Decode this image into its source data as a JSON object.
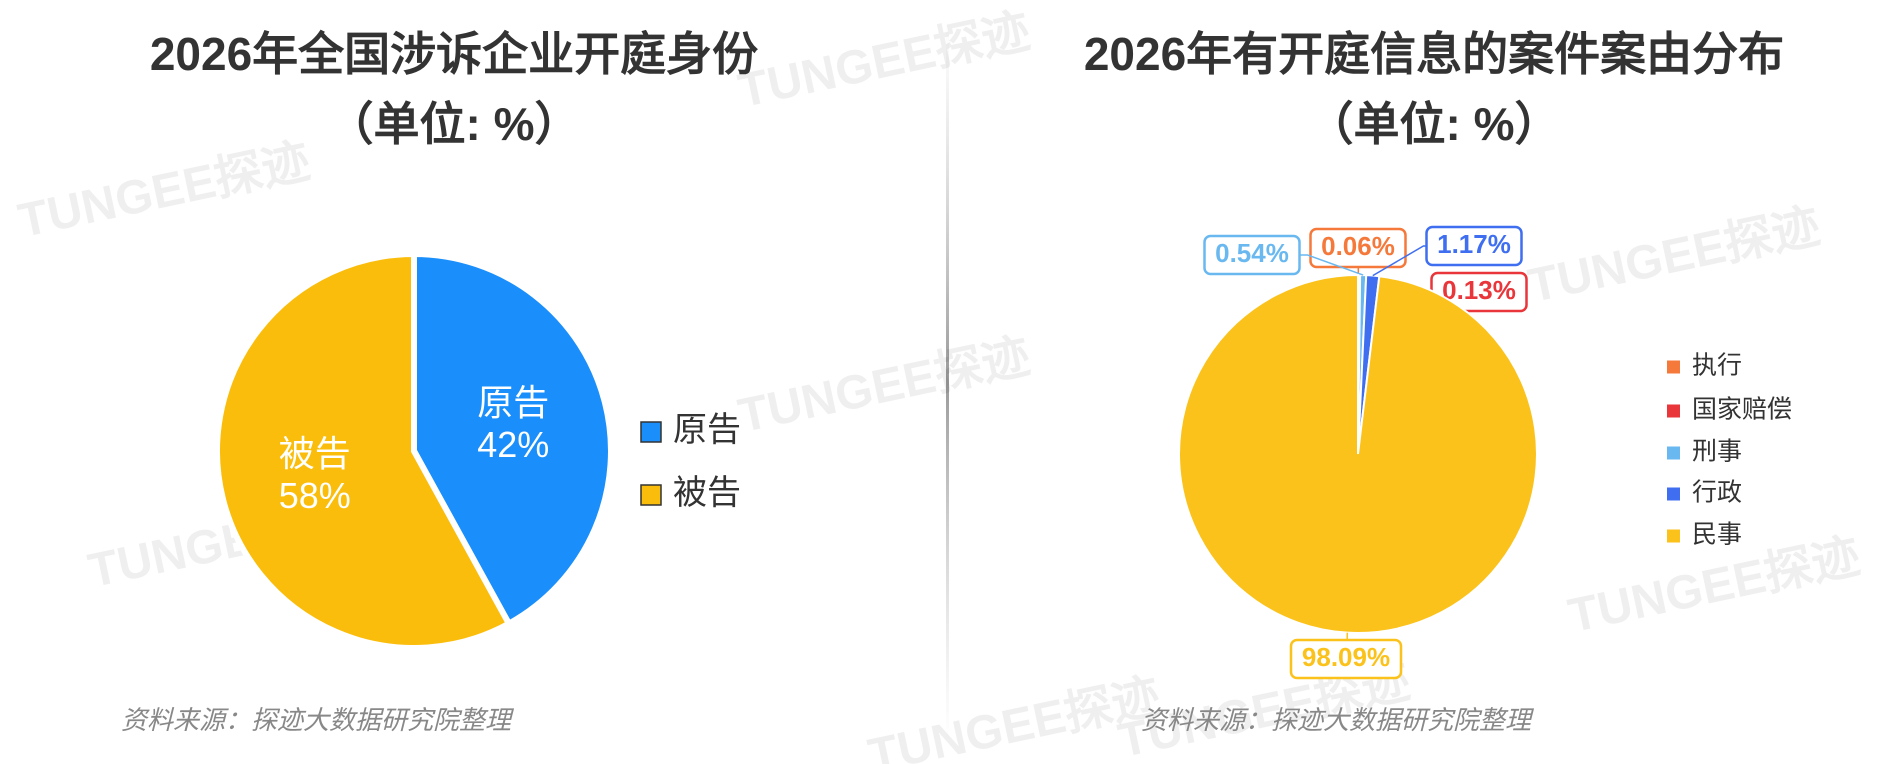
{
  "watermark": "TUNGEE探迹",
  "chart_data": [
    {
      "type": "pie",
      "title": "2026年全国涉诉企业开庭身份",
      "subtitle": "（单位: %）",
      "categories": [
        "原告",
        "被告"
      ],
      "values": [
        42,
        58
      ],
      "value_labels": [
        "42%",
        "58%"
      ],
      "colors": [
        "#1a8ffb",
        "#fbbd0b"
      ],
      "source": "资料来源：探迹大数据研究院整理"
    },
    {
      "type": "pie",
      "title": "2026年有开庭信息的案件案由分布",
      "subtitle": "（单位: %）",
      "categories": [
        "执行",
        "国家赔偿",
        "刑事",
        "行政",
        "民事"
      ],
      "values": [
        0.06,
        0.13,
        0.54,
        1.17,
        98.09
      ],
      "value_labels": [
        "0.06%",
        "0.13%",
        "0.54%",
        "1.17%",
        "98.09%"
      ],
      "colors": [
        "#f5793a",
        "#e8363a",
        "#6ab8f0",
        "#3f6ff0",
        "#fbc21b"
      ],
      "source": "资料来源：探迹大数据研究院整理"
    }
  ]
}
